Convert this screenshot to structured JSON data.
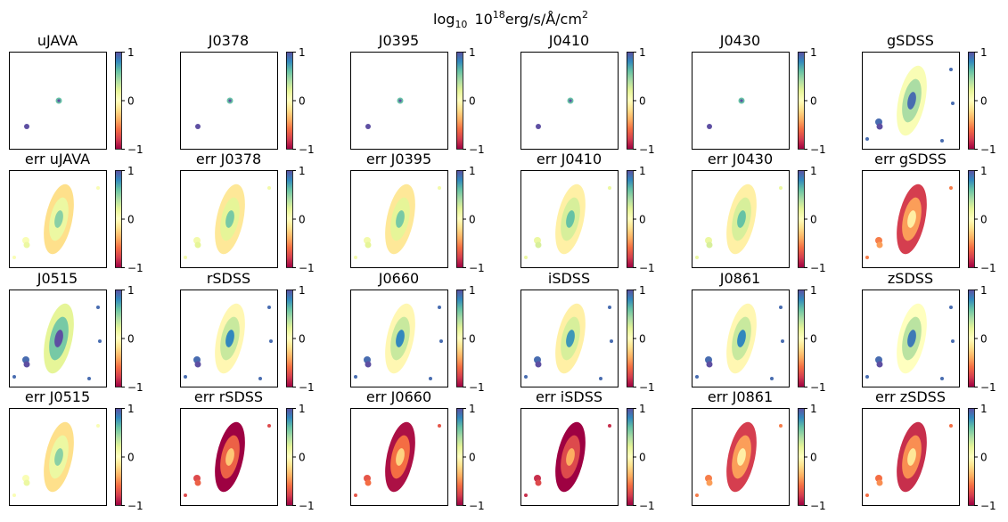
{
  "chart_data": {
    "type": "heatmap",
    "title": "log₁₀  10¹⁸erg/s/Å/cm²",
    "title_base": "log",
    "title_base_sub": "10",
    "title_mid": "10",
    "title_mid_sup": "18",
    "title_unit": "erg/s/Å/cm",
    "title_unit_sup": "2",
    "colormap": "Spectral",
    "colorbar": {
      "vmin": -1,
      "vmax": 1,
      "ticks": [
        "1",
        "0",
        "−1"
      ]
    },
    "panels": [
      {
        "label": "uJAVA",
        "level": 0.9
      },
      {
        "label": "J0378",
        "level": 0.9
      },
      {
        "label": "J0395",
        "level": 0.9
      },
      {
        "label": "J0410",
        "level": 0.9
      },
      {
        "label": "J0430",
        "level": 0.9
      },
      {
        "label": "gSDSS",
        "level": 0.3
      },
      {
        "label": "err uJAVA",
        "level": 0.05
      },
      {
        "label": "err J0378",
        "level": 0.1
      },
      {
        "label": "err J0395",
        "level": 0.1
      },
      {
        "label": "err J0410",
        "level": 0.15
      },
      {
        "label": "err J0430",
        "level": 0.15
      },
      {
        "label": "err gSDSS",
        "level": -0.55
      },
      {
        "label": "J0515",
        "level": 0.45
      },
      {
        "label": "rSDSS",
        "level": 0.2
      },
      {
        "label": "J0660",
        "level": 0.2
      },
      {
        "label": "iSDSS",
        "level": 0.15
      },
      {
        "label": "J0861",
        "level": 0.2
      },
      {
        "label": "zSDSS",
        "level": 0.25
      },
      {
        "label": "err J0515",
        "level": 0.05
      },
      {
        "label": "err rSDSS",
        "level": -0.75
      },
      {
        "label": "err J0660",
        "level": -0.7
      },
      {
        "label": "err iSDSS",
        "level": -0.85
      },
      {
        "label": "err J0861",
        "level": -0.55
      },
      {
        "label": "err zSDSS",
        "level": -0.6
      }
    ]
  }
}
